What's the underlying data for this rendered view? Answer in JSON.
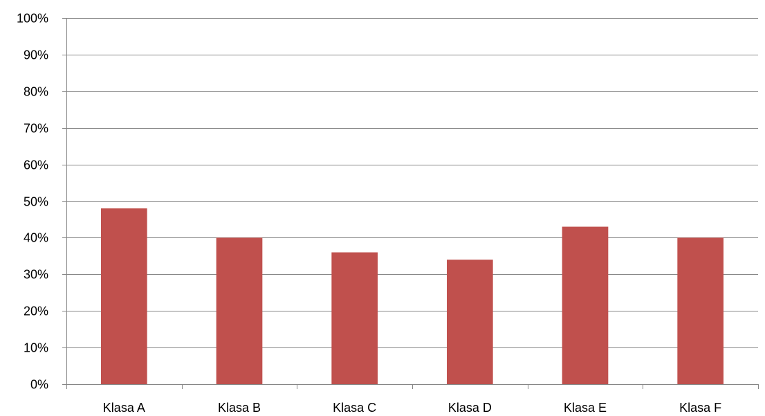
{
  "chart_data": {
    "type": "bar",
    "categories": [
      "Klasa A",
      "Klasa B",
      "Klasa C",
      "Klasa D",
      "Klasa E",
      "Klasa F"
    ],
    "values": [
      48,
      40,
      36,
      34,
      43,
      40
    ],
    "ylim": [
      0,
      100
    ],
    "yticks": [
      "0%",
      "10%",
      "20%",
      "30%",
      "40%",
      "50%",
      "60%",
      "70%",
      "80%",
      "90%",
      "100%"
    ],
    "title": "",
    "xlabel": "",
    "ylabel": "",
    "grid": true,
    "legend": "none",
    "colors": {
      "bar": "#c0504d",
      "grid": "#868686",
      "axis": "#868686"
    }
  }
}
